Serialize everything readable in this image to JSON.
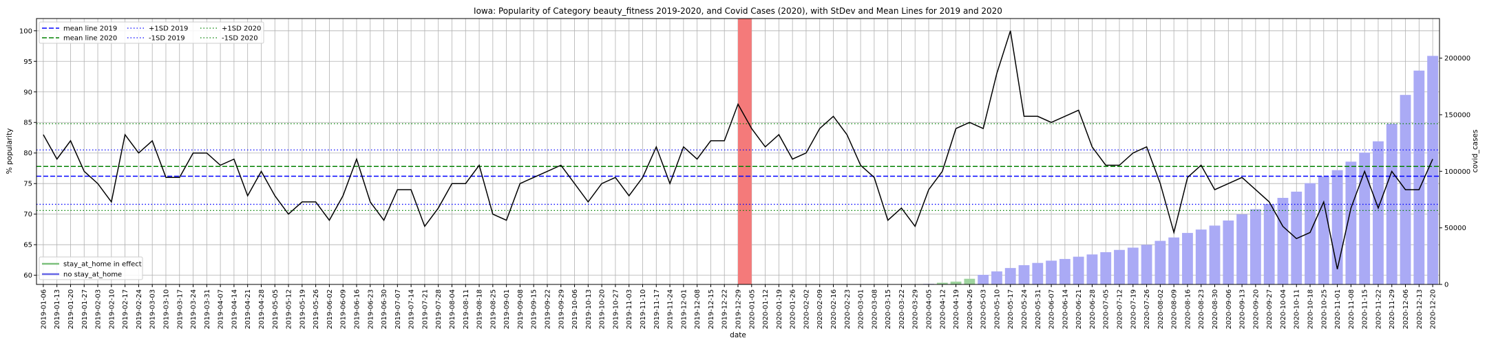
{
  "chart_data": {
    "type": "line",
    "title": "Iowa: Popularity of Category beauty_fitness 2019-2020, and Covid Cases (2020), with StDev and Mean Lines for 2019 and 2020",
    "xlabel": "date",
    "ylabel": "% popularity",
    "y2label": "covid_cases",
    "ylim": [
      58.5,
      102
    ],
    "y2lim": [
      0,
      235000
    ],
    "yticks": [
      60,
      65,
      70,
      75,
      80,
      85,
      90,
      95,
      100
    ],
    "y2ticks": [
      0,
      50000,
      100000,
      150000,
      200000
    ],
    "grid": true,
    "dates": [
      "2019-01-06",
      "2019-01-13",
      "2019-01-20",
      "2019-01-27",
      "2019-02-03",
      "2019-02-10",
      "2019-02-17",
      "2019-02-24",
      "2019-03-03",
      "2019-03-10",
      "2019-03-17",
      "2019-03-24",
      "2019-03-31",
      "2019-04-07",
      "2019-04-14",
      "2019-04-21",
      "2019-04-28",
      "2019-05-05",
      "2019-05-12",
      "2019-05-19",
      "2019-05-26",
      "2019-06-02",
      "2019-06-09",
      "2019-06-16",
      "2019-06-23",
      "2019-06-30",
      "2019-07-07",
      "2019-07-14",
      "2019-07-21",
      "2019-07-28",
      "2019-08-04",
      "2019-08-11",
      "2019-08-18",
      "2019-08-25",
      "2019-09-01",
      "2019-09-08",
      "2019-09-15",
      "2019-09-22",
      "2019-09-29",
      "2019-10-06",
      "2019-10-13",
      "2019-10-20",
      "2019-10-27",
      "2019-11-03",
      "2019-11-10",
      "2019-11-17",
      "2019-11-24",
      "2019-12-01",
      "2019-12-08",
      "2019-12-15",
      "2019-12-22",
      "2019-12-29",
      "2020-01-05",
      "2020-01-12",
      "2020-01-19",
      "2020-01-26",
      "2020-02-02",
      "2020-02-09",
      "2020-02-16",
      "2020-02-23",
      "2020-03-01",
      "2020-03-08",
      "2020-03-15",
      "2020-03-22",
      "2020-03-29",
      "2020-04-05",
      "2020-04-12",
      "2020-04-19",
      "2020-04-26",
      "2020-05-03",
      "2020-05-10",
      "2020-05-17",
      "2020-05-24",
      "2020-05-31",
      "2020-06-07",
      "2020-06-14",
      "2020-06-21",
      "2020-06-28",
      "2020-07-05",
      "2020-07-12",
      "2020-07-19",
      "2020-07-26",
      "2020-08-02",
      "2020-08-09",
      "2020-08-16",
      "2020-08-23",
      "2020-08-30",
      "2020-09-06",
      "2020-09-13",
      "2020-09-20",
      "2020-09-27",
      "2020-10-04",
      "2020-10-11",
      "2020-10-18",
      "2020-10-25",
      "2020-11-01",
      "2020-11-08",
      "2020-11-15",
      "2020-11-22",
      "2020-11-29",
      "2020-12-06",
      "2020-12-13",
      "2020-12-20"
    ],
    "popularity": [
      83,
      79,
      82,
      77,
      75,
      72,
      83,
      80,
      82,
      76,
      76,
      80,
      80,
      78,
      79,
      73,
      77,
      73,
      70,
      72,
      72,
      69,
      73,
      79,
      72,
      69,
      74,
      74,
      68,
      71,
      75,
      75,
      78,
      70,
      69,
      75,
      76,
      77,
      78,
      75,
      72,
      75,
      76,
      73,
      76,
      81,
      75,
      81,
      79,
      82,
      82,
      88,
      84,
      81,
      83,
      79,
      80,
      84,
      86,
      83,
      78,
      76,
      69,
      71,
      68,
      74,
      77,
      84,
      85,
      84,
      93,
      100,
      86,
      86,
      85,
      86,
      87,
      81,
      78,
      78,
      80,
      81,
      75,
      67,
      76,
      78,
      74,
      75,
      76,
      74,
      72,
      68,
      66,
      67,
      72,
      61,
      71,
      77,
      71,
      77,
      74,
      74,
      79
    ],
    "covid_cases": [
      0,
      0,
      0,
      0,
      0,
      0,
      0,
      0,
      0,
      0,
      0,
      0,
      0,
      0,
      0,
      0,
      0,
      0,
      0,
      0,
      0,
      0,
      0,
      0,
      0,
      0,
      0,
      0,
      0,
      0,
      0,
      0,
      0,
      0,
      0,
      0,
      0,
      0,
      0,
      0,
      0,
      0,
      0,
      0,
      0,
      0,
      0,
      0,
      0,
      0,
      0,
      0,
      0,
      0,
      0,
      0,
      0,
      0,
      0,
      0,
      0,
      0,
      0,
      0,
      100,
      500,
      1500,
      2500,
      5000,
      8500,
      11500,
      14500,
      17000,
      19000,
      21000,
      22500,
      24500,
      26500,
      28500,
      30500,
      32500,
      35000,
      38500,
      41500,
      45500,
      48500,
      52000,
      56500,
      62000,
      66500,
      71000,
      76500,
      82000,
      89500,
      95500,
      101000,
      108500,
      116500,
      126500,
      142000,
      167500,
      189000,
      202000
    ],
    "stay_at_home_in_effect": [
      false,
      false,
      false,
      false,
      false,
      false,
      false,
      false,
      false,
      false,
      false,
      false,
      false,
      false,
      false,
      false,
      false,
      false,
      false,
      false,
      false,
      false,
      false,
      false,
      false,
      false,
      false,
      false,
      false,
      false,
      false,
      false,
      false,
      false,
      false,
      false,
      false,
      false,
      false,
      false,
      false,
      false,
      false,
      false,
      false,
      false,
      false,
      false,
      false,
      false,
      false,
      false,
      false,
      false,
      false,
      false,
      false,
      false,
      false,
      false,
      false,
      false,
      false,
      false,
      false,
      false,
      true,
      true,
      true,
      false,
      false,
      false,
      false,
      false,
      false,
      false,
      false,
      false,
      false,
      false,
      false,
      false,
      false,
      false,
      false,
      false,
      false,
      false,
      false,
      false,
      false,
      false,
      false,
      false,
      false,
      false,
      false,
      false,
      false,
      false,
      false,
      false,
      false
    ],
    "mean_2019": 76.2,
    "sd_plus_2019": 80.5,
    "sd_minus_2019": 71.6,
    "mean_2020": 77.8,
    "sd_plus_2020": 84.8,
    "sd_minus_2020": 70.6,
    "year_boundary_band": [
      "2019-12-29",
      "2020-01-05"
    ],
    "legend_upper": [
      "mean line 2019",
      "mean line 2020",
      "+1SD 2019",
      "-1SD 2019",
      "+1SD 2020",
      "-1SD 2020"
    ],
    "legend_lower": [
      "stay_at_home in effect",
      "no stay_at_home"
    ],
    "colors": {
      "popularity_line": "#000000",
      "mean_2019": "#0000ff",
      "mean_2020": "#008000",
      "sd_2019": "#0000ff",
      "sd_2020": "#008000",
      "bars_no_stay": "#aaaaf5",
      "bars_stay": "#9ed49e",
      "band": "#f47a7a",
      "grid": "#b0b0b0"
    }
  }
}
